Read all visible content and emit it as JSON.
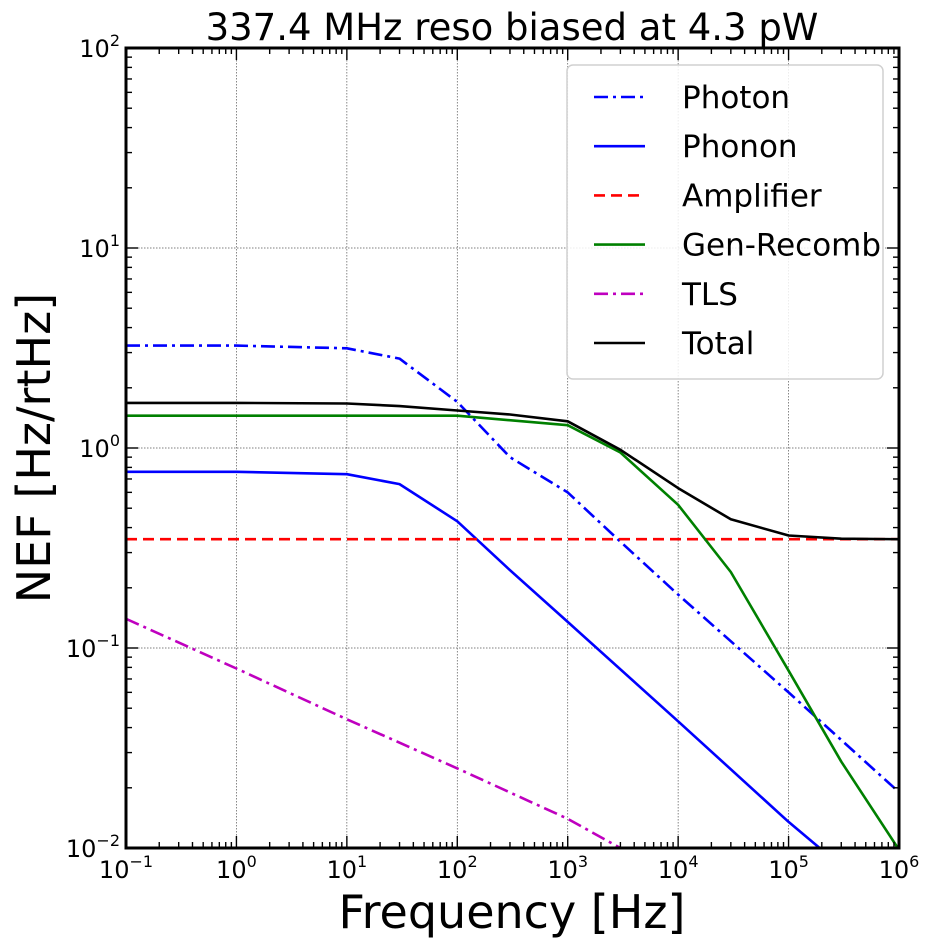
{
  "chart_data": {
    "type": "line",
    "title": "337.4 MHz reso biased at 4.3 pW",
    "xlabel": "Frequency [Hz]",
    "ylabel": "NEF [Hz/rtHz]",
    "xscale": "log",
    "yscale": "log",
    "xlim": [
      0.1,
      1000000
    ],
    "ylim": [
      0.01,
      100
    ],
    "grid": true,
    "legend_position": "top-right",
    "x_ticks": [
      {
        "base": "10",
        "exp": "−1",
        "value": 0.1
      },
      {
        "base": "10",
        "exp": "0",
        "value": 1
      },
      {
        "base": "10",
        "exp": "1",
        "value": 10
      },
      {
        "base": "10",
        "exp": "2",
        "value": 100
      },
      {
        "base": "10",
        "exp": "3",
        "value": 1000
      },
      {
        "base": "10",
        "exp": "4",
        "value": 10000
      },
      {
        "base": "10",
        "exp": "5",
        "value": 100000
      },
      {
        "base": "10",
        "exp": "6",
        "value": 1000000
      }
    ],
    "y_ticks": [
      {
        "base": "10",
        "exp": "−2",
        "value": 0.01
      },
      {
        "base": "10",
        "exp": "−1",
        "value": 0.1
      },
      {
        "base": "10",
        "exp": "0",
        "value": 1
      },
      {
        "base": "10",
        "exp": "1",
        "value": 10
      },
      {
        "base": "10",
        "exp": "2",
        "value": 100
      }
    ],
    "series": [
      {
        "name": "Photon",
        "color": "#0000ff",
        "style": "dashdot",
        "x": [
          0.1,
          1,
          10,
          30,
          100,
          300,
          1000,
          3000,
          10000,
          100000,
          1000000
        ],
        "y": [
          3.25,
          3.25,
          3.15,
          2.8,
          1.7,
          0.9,
          0.6,
          0.34,
          0.185,
          0.06,
          0.019
        ]
      },
      {
        "name": "Phonon",
        "color": "#0000ff",
        "style": "solid",
        "x": [
          0.1,
          1,
          10,
          30,
          100,
          300,
          1000,
          10000,
          100000,
          200000
        ],
        "y": [
          0.76,
          0.76,
          0.74,
          0.66,
          0.43,
          0.245,
          0.135,
          0.043,
          0.0135,
          0.0098
        ]
      },
      {
        "name": "Amplifier",
        "color": "#ff0000",
        "style": "dashed",
        "x": [
          0.1,
          1000000
        ],
        "y": [
          0.35,
          0.35
        ]
      },
      {
        "name": "Gen-Recomb",
        "color": "#008000",
        "style": "solid",
        "x": [
          0.1,
          10,
          100,
          1000,
          3000,
          10000,
          30000,
          100000,
          300000,
          1000000
        ],
        "y": [
          1.45,
          1.45,
          1.45,
          1.3,
          0.95,
          0.52,
          0.24,
          0.077,
          0.027,
          0.0098
        ]
      },
      {
        "name": "TLS",
        "color": "#bf00bf",
        "style": "dashdot",
        "x": [
          0.1,
          1,
          10,
          100,
          1000,
          3200
        ],
        "y": [
          0.14,
          0.079,
          0.044,
          0.025,
          0.014,
          0.0098
        ]
      },
      {
        "name": "Total",
        "color": "#000000",
        "style": "solid",
        "x": [
          0.1,
          1,
          10,
          30,
          100,
          300,
          1000,
          3000,
          10000,
          30000,
          100000,
          300000,
          1000000
        ],
        "y": [
          1.68,
          1.68,
          1.67,
          1.62,
          1.54,
          1.47,
          1.36,
          0.98,
          0.63,
          0.44,
          0.365,
          0.352,
          0.35
        ]
      }
    ]
  }
}
